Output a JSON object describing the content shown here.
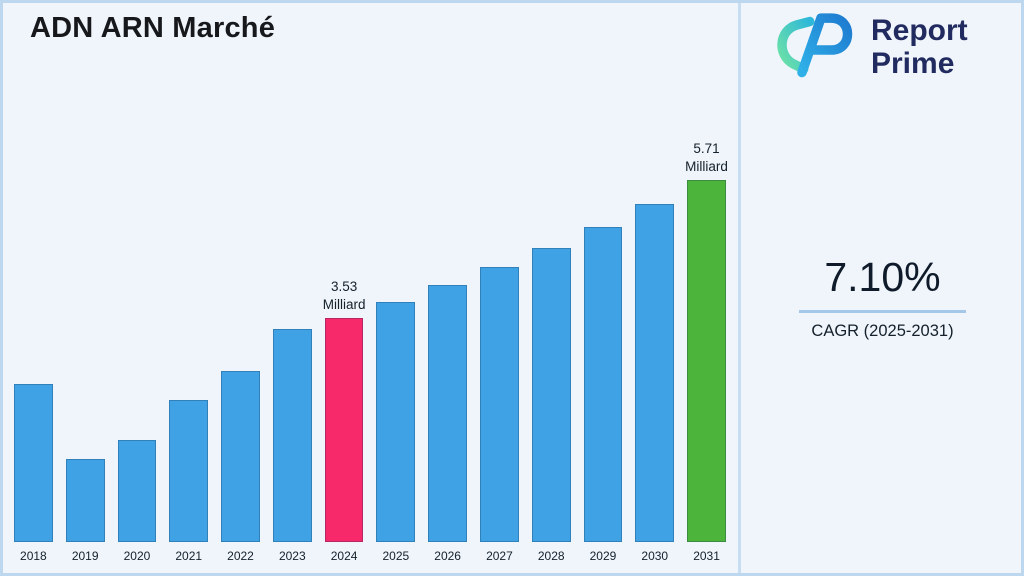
{
  "page": {
    "title": "ADN ARN Marché"
  },
  "brand": {
    "name_line1": "Report",
    "name_line2": "Prime"
  },
  "stats": {
    "cagr_value": "7.10%",
    "cagr_label": "CAGR (2025-2031)"
  },
  "chart_data": {
    "type": "bar",
    "title": "ADN ARN Marché",
    "unit": "Milliard",
    "categories": [
      "2018",
      "2019",
      "2020",
      "2021",
      "2022",
      "2023",
      "2024",
      "2025",
      "2026",
      "2027",
      "2028",
      "2029",
      "2030",
      "2031"
    ],
    "values": [
      2.5,
      1.31,
      1.61,
      2.24,
      2.7,
      3.36,
      3.53,
      3.78,
      4.05,
      4.34,
      4.64,
      4.97,
      5.33,
      5.71
    ],
    "ylim": [
      0,
      5.71
    ],
    "grid": false,
    "legend": false,
    "bar_color_default": "#3FA2E4",
    "bar_color_overrides": {
      "2024": "#F7296B",
      "2031": "#4CB43B"
    },
    "annotations": [
      {
        "category": "2024",
        "lines": [
          "3.53",
          "Milliard"
        ]
      },
      {
        "category": "2031",
        "lines": [
          "5.71",
          "Milliard"
        ]
      }
    ]
  },
  "colors": {
    "background": "#EFF5FB",
    "frame_border": "#BDD7EF",
    "divider": "#C6DDF2",
    "underline": "#A6C8E8",
    "brand_navy": "#222B5F",
    "logo_blue": "#2196D9",
    "logo_teal": "#3ED598"
  }
}
